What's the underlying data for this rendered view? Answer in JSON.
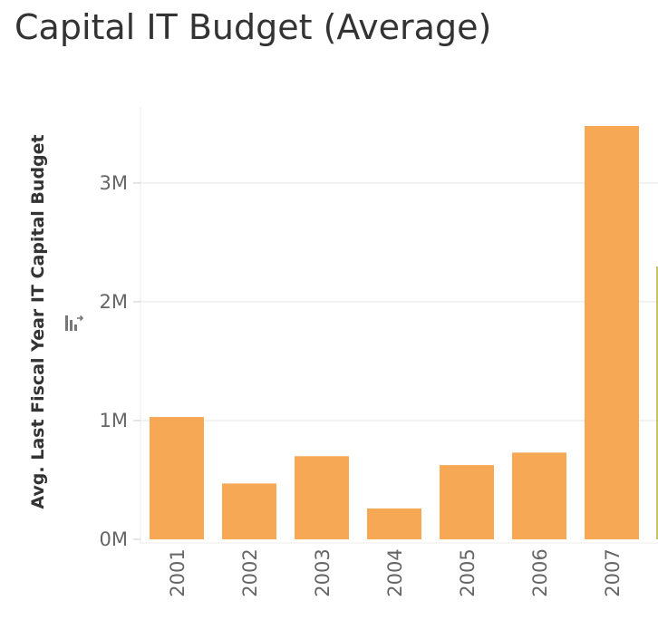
{
  "chart_data": {
    "type": "bar",
    "title": "Capital IT Budget (Average)",
    "xlabel": "",
    "ylabel": "Avg. Last Fiscal Year IT Capital Budget",
    "categories": [
      "2001",
      "2002",
      "2003",
      "2004",
      "2005",
      "2006",
      "2007"
    ],
    "values": [
      1030000,
      470000,
      700000,
      260000,
      625000,
      730000,
      3480000
    ],
    "y_ticks": [
      {
        "value": 0,
        "label": "0M"
      },
      {
        "value": 1000000,
        "label": "1M"
      },
      {
        "value": 2000000,
        "label": "2M"
      },
      {
        "value": 3000000,
        "label": "3M"
      }
    ],
    "ylim": [
      0,
      3480000
    ],
    "grid": true,
    "colors": {
      "bar": "#F6A854",
      "grid": "#EDEDED",
      "axis": "#CCCCCC",
      "text": "#666666",
      "partial_bar": "#C7C266"
    }
  },
  "icons": {
    "sort": "sort-icon"
  }
}
